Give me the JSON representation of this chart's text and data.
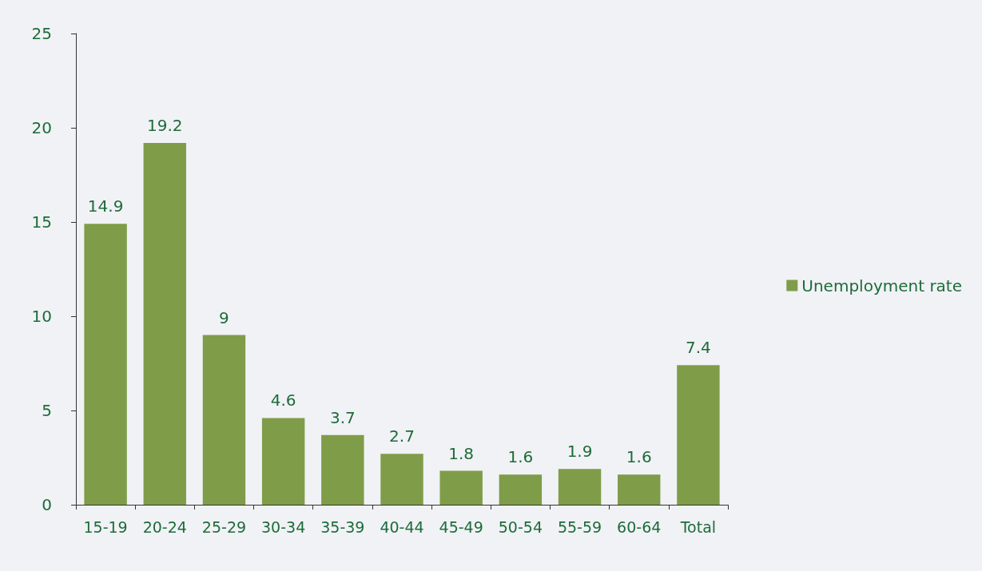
{
  "chart_data": {
    "type": "bar",
    "categories": [
      "15-19",
      "20-24",
      "25-29",
      "30-34",
      "35-39",
      "40-44",
      "45-49",
      "50-54",
      "55-59",
      "60-64",
      "Total"
    ],
    "series": [
      {
        "name": "Unemployment rate",
        "color": "#7f9c48",
        "values": [
          14.9,
          19.2,
          9,
          4.6,
          3.7,
          2.7,
          1.8,
          1.6,
          1.9,
          1.6,
          7.4
        ]
      }
    ],
    "ylim": [
      0,
      25
    ],
    "yticks": [
      0,
      5,
      10,
      15,
      20,
      25
    ],
    "data_labels": true,
    "legend": "right",
    "grid": false
  }
}
